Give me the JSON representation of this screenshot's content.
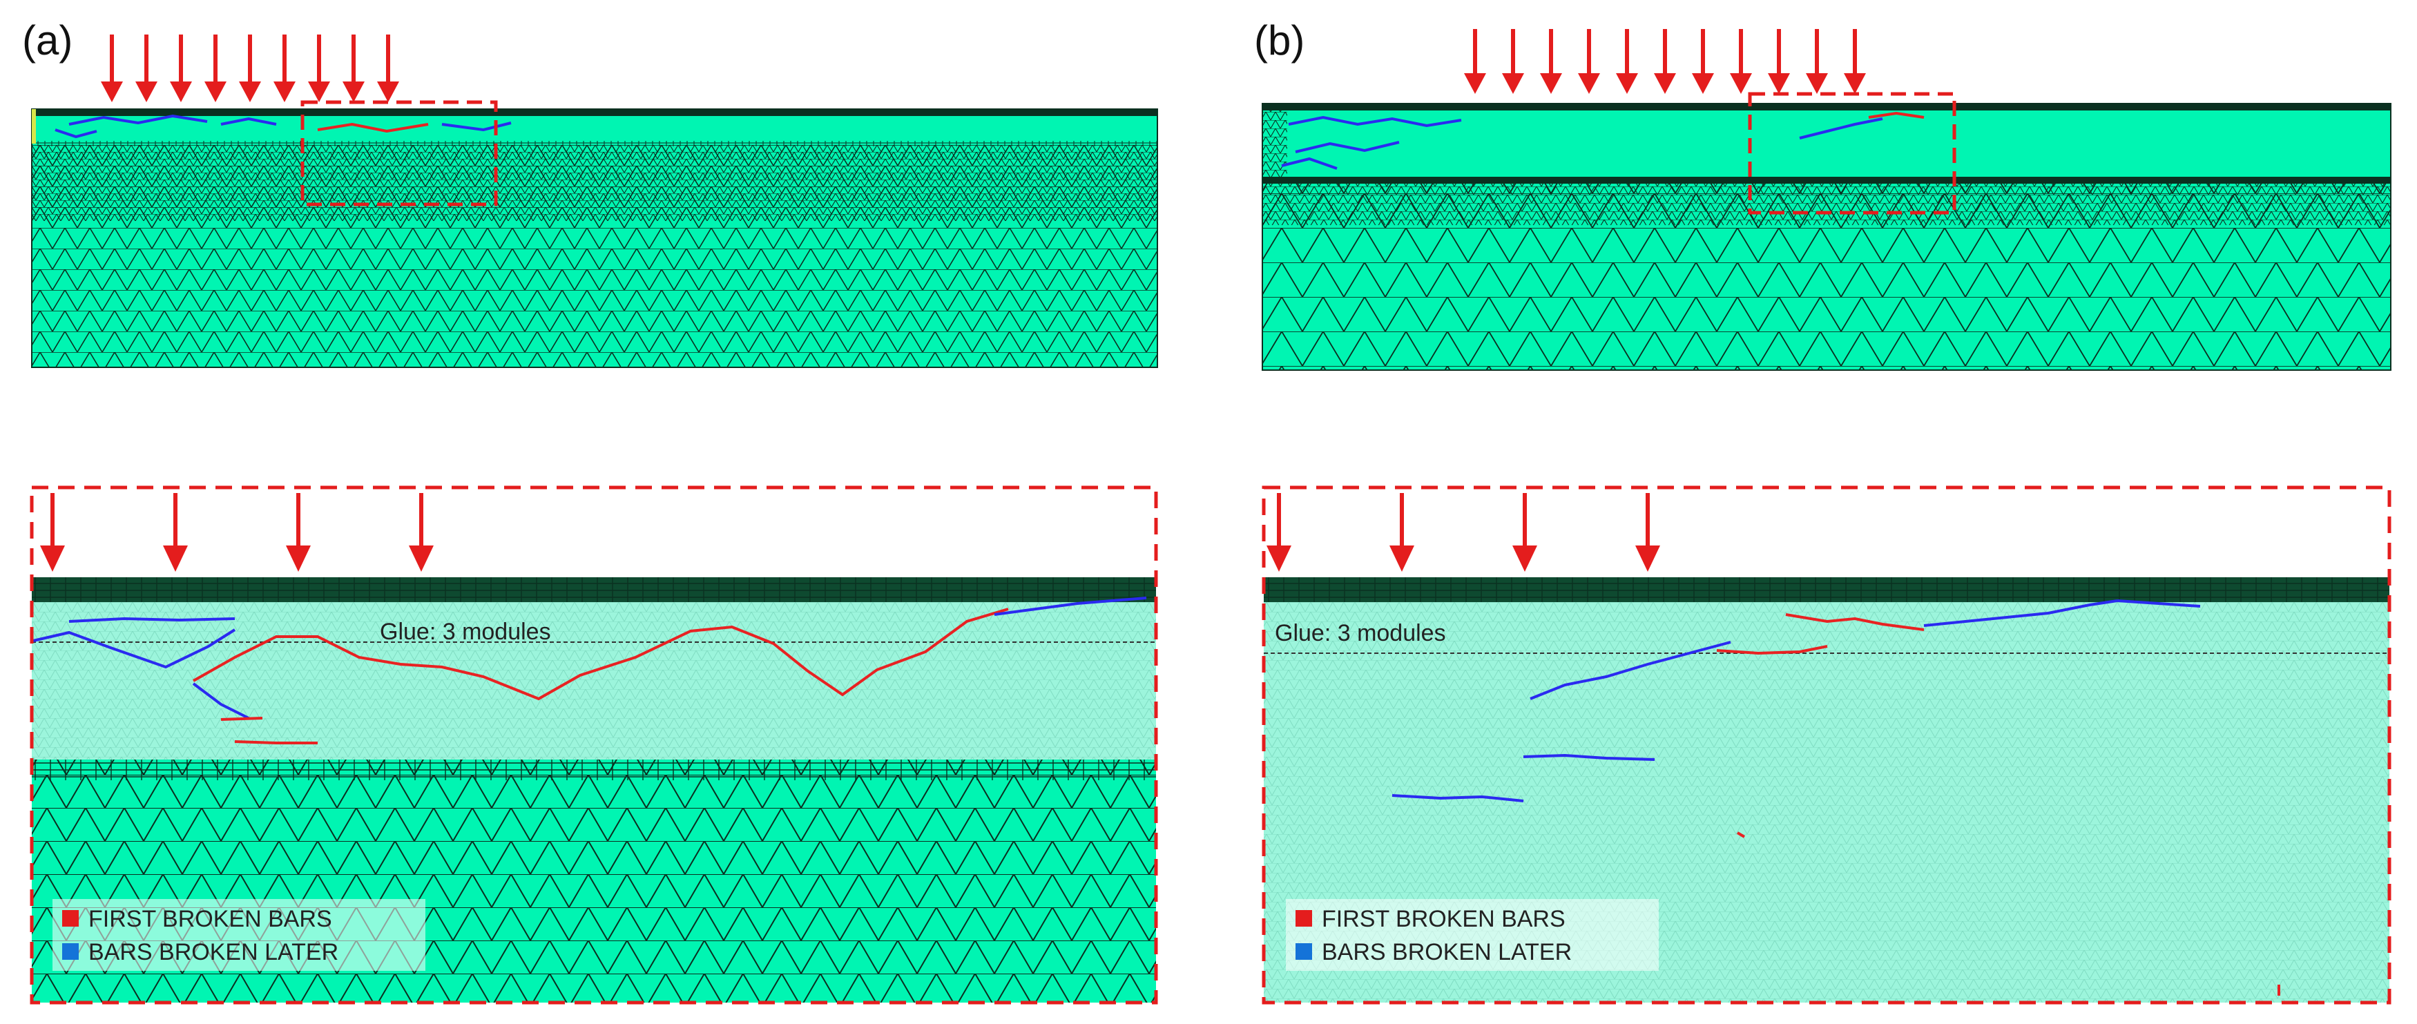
{
  "panels": {
    "a": {
      "label": "(a)",
      "glue_note": "Glue: 3 modules"
    },
    "b": {
      "label": "(b)",
      "glue_note": "Glue: 3 modules"
    }
  },
  "legend": {
    "first": "FIRST BROKEN BARS",
    "later": "BARS BROKEN LATER"
  },
  "colors": {
    "mesh_fill": "#00f5b2",
    "mesh_fill_light": "#9cf5dc",
    "mesh_line": "#0a3020",
    "arrow": "#e41d1d",
    "first_broken": "#e82222",
    "broken_later": "#2a2af0",
    "legend_first": "#e41d1d",
    "legend_later": "#1473d8"
  },
  "icons": [
    "down-arrow-icon",
    "legend-swatch-icon"
  ]
}
